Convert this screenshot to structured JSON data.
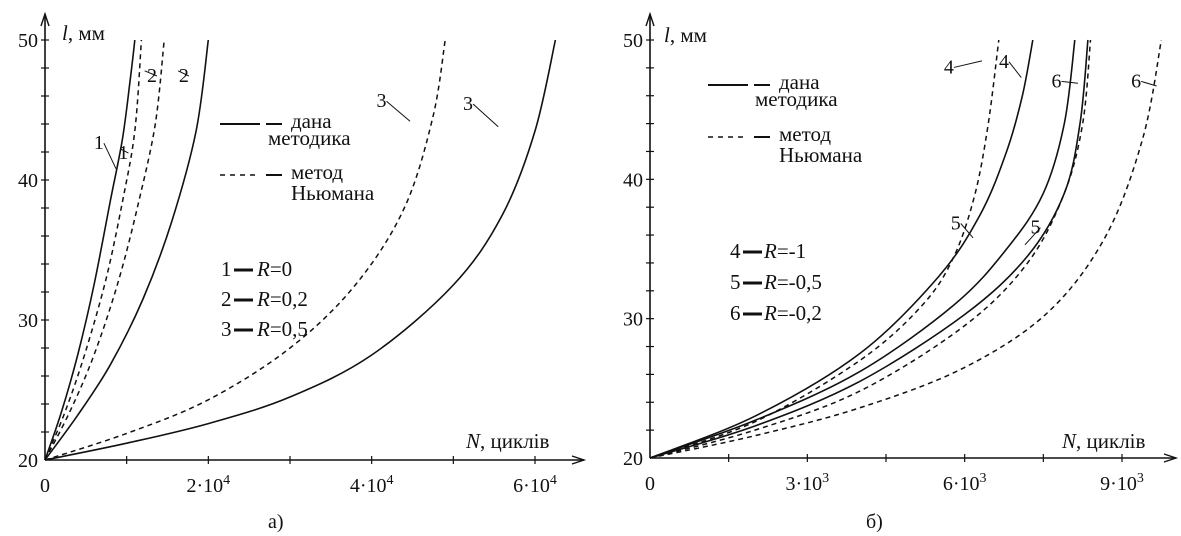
{
  "chart_data": [
    {
      "type": "line",
      "caption": "а)",
      "xlabel_var": "N",
      "xlabel_unit": ", циклів",
      "ylabel_var": "l",
      "ylabel_unit": ", мм",
      "xlim": [
        0,
        65000
      ],
      "ylim": [
        20,
        50
      ],
      "x_ticks": [
        {
          "value": 0,
          "label": "0"
        },
        {
          "value": 20000,
          "mant": "2·10",
          "exp": "4"
        },
        {
          "value": 40000,
          "mant": "4·10",
          "exp": "4"
        },
        {
          "value": 60000,
          "mant": "6·10",
          "exp": "4"
        }
      ],
      "y_ticks": [
        {
          "value": 20,
          "label": "20"
        },
        {
          "value": 30,
          "label": "30"
        },
        {
          "value": 40,
          "label": "40"
        },
        {
          "value": 50,
          "label": "50"
        }
      ],
      "legend": [
        {
          "style": "solid",
          "line1": "дана",
          "line2": "методика"
        },
        {
          "style": "dashed",
          "line1": "метод",
          "line2": "Ньюмана"
        }
      ],
      "r_legend": [
        {
          "id": "1",
          "value": "=0"
        },
        {
          "id": "2",
          "value": "=0,2"
        },
        {
          "id": "3",
          "value": "=0,5"
        }
      ],
      "series": [
        {
          "label": "1",
          "style": "solid",
          "x": [
            0,
            2000,
            4000,
            6000,
            8000,
            9500,
            10500,
            11000
          ],
          "y": [
            20,
            23.4,
            27.5,
            32.5,
            38.5,
            43,
            47.5,
            50
          ]
        },
        {
          "label": "1",
          "style": "dashed",
          "x": [
            0,
            2500,
            5000,
            7500,
            9500,
            11000,
            11800
          ],
          "y": [
            20,
            23.5,
            27.8,
            33,
            38.5,
            43.5,
            50
          ]
        },
        {
          "label": "2",
          "style": "dashed",
          "x": [
            0,
            3000,
            6000,
            9000,
            11500,
            13500,
            14600
          ],
          "y": [
            20,
            23.4,
            27.5,
            32.8,
            38.5,
            44,
            50
          ]
        },
        {
          "label": "2",
          "style": "solid",
          "x": [
            0,
            4000,
            8000,
            12000,
            15500,
            18500,
            20000
          ],
          "y": [
            20,
            23.2,
            26.8,
            31.5,
            37,
            43.5,
            50
          ]
        },
        {
          "label": "3",
          "style": "dashed",
          "x": [
            0,
            10000,
            20000,
            30000,
            38000,
            44000,
            47500,
            49000
          ],
          "y": [
            20,
            21.9,
            24.3,
            28,
            32.5,
            38,
            44.5,
            50
          ]
        },
        {
          "label": "3",
          "style": "solid",
          "x": [
            0,
            10000,
            20000,
            30000,
            40000,
            50000,
            56000,
            60000,
            62500
          ],
          "y": [
            20,
            21.2,
            22.6,
            24.5,
            27.5,
            32.5,
            37.5,
            43.5,
            50
          ]
        }
      ],
      "curve_labels": [
        {
          "text": "1",
          "x": 6600,
          "y": 42.2,
          "target": [
            8700,
            40.8
          ]
        },
        {
          "text": "1",
          "x": 9600,
          "y": 41.5,
          "target": [
            9300,
            42.2
          ]
        },
        {
          "text": "2",
          "x": 13100,
          "y": 47,
          "target": [
            12200,
            47.8
          ]
        },
        {
          "text": "2",
          "x": 17000,
          "y": 47,
          "target": [
            16300,
            47.8
          ]
        },
        {
          "text": "3",
          "x": 41200,
          "y": 45.2,
          "target": [
            44700,
            44.2
          ]
        },
        {
          "text": "3",
          "x": 51800,
          "y": 45,
          "target": [
            55500,
            43.8
          ]
        }
      ]
    },
    {
      "type": "line",
      "caption": "б)",
      "xlabel_var": "N",
      "xlabel_unit": ", циклів",
      "ylabel_var": "l",
      "ylabel_unit": ", мм",
      "xlim": [
        0,
        10400
      ],
      "ylim": [
        20,
        50
      ],
      "x_ticks": [
        {
          "value": 0,
          "label": "0"
        },
        {
          "value": 3000,
          "mant": "3·10",
          "exp": "3"
        },
        {
          "value": 6000,
          "mant": "6·10",
          "exp": "3"
        },
        {
          "value": 9000,
          "mant": "9·10",
          "exp": "3"
        }
      ],
      "y_ticks": [
        {
          "value": 20,
          "label": "20"
        },
        {
          "value": 30,
          "label": "30"
        },
        {
          "value": 40,
          "label": "40"
        },
        {
          "value": 50,
          "label": "50"
        }
      ],
      "legend": [
        {
          "style": "solid",
          "line1": "дана",
          "line2": "методика"
        },
        {
          "style": "dashed",
          "line1": "метод",
          "line2": "Ньюмана"
        }
      ],
      "r_legend": [
        {
          "id": "4",
          "value": "=-1"
        },
        {
          "id": "5",
          "value": "=-0,5"
        },
        {
          "id": "6",
          "value": "=-0,2"
        }
      ],
      "series": [
        {
          "label": "4",
          "style": "solid",
          "x": [
            0,
            2000,
            4000,
            5500,
            6300,
            6800,
            7100,
            7300
          ],
          "y": [
            20,
            23,
            27.5,
            33,
            37.5,
            42,
            46,
            50
          ]
        },
        {
          "label": "4",
          "style": "dashed",
          "x": [
            0,
            2000,
            4000,
            5200,
            5800,
            6200,
            6450,
            6650
          ],
          "y": [
            20,
            22.6,
            27,
            31,
            34.5,
            39,
            44,
            50
          ]
        },
        {
          "label": "5",
          "style": "solid",
          "x": [
            0,
            2000,
            4000,
            5800,
            6800,
            7500,
            7900,
            8100
          ],
          "y": [
            20,
            22.7,
            26.2,
            31,
            35,
            39,
            44,
            50
          ]
        },
        {
          "label": "6",
          "style": "solid",
          "x": [
            0,
            2000,
            4000,
            6000,
            7200,
            7900,
            8200,
            8350
          ],
          "y": [
            20,
            22.3,
            25.5,
            30.3,
            34.5,
            39,
            44,
            50
          ]
        },
        {
          "label": "5",
          "style": "dashed",
          "x": [
            0,
            2000,
            4000,
            6000,
            7200,
            7900,
            8250,
            8400
          ],
          "y": [
            20,
            22,
            24.8,
            29.5,
            34,
            39,
            44,
            50
          ]
        },
        {
          "label": "6",
          "style": "dashed",
          "x": [
            0,
            2000,
            4000,
            6000,
            7600,
            8700,
            9400,
            9750
          ],
          "y": [
            20,
            21.6,
            23.6,
            26.5,
            30.5,
            36,
            43,
            50
          ]
        }
      ],
      "curve_labels": [
        {
          "text": "4",
          "x": 5700,
          "y": 47.6,
          "target": [
            6330,
            48.5
          ]
        },
        {
          "text": "4",
          "x": 6750,
          "y": 48,
          "target": [
            7080,
            47.3
          ]
        },
        {
          "text": "6",
          "x": 7750,
          "y": 46.6,
          "target": [
            8160,
            46.9
          ]
        },
        {
          "text": "6",
          "x": 9270,
          "y": 46.6,
          "target": [
            9660,
            46.7
          ]
        },
        {
          "text": "5",
          "x": 5830,
          "y": 36.4,
          "target": [
            6160,
            35.8
          ]
        },
        {
          "text": "5",
          "x": 7350,
          "y": 36.1,
          "target": [
            7150,
            35.3
          ]
        }
      ]
    }
  ]
}
